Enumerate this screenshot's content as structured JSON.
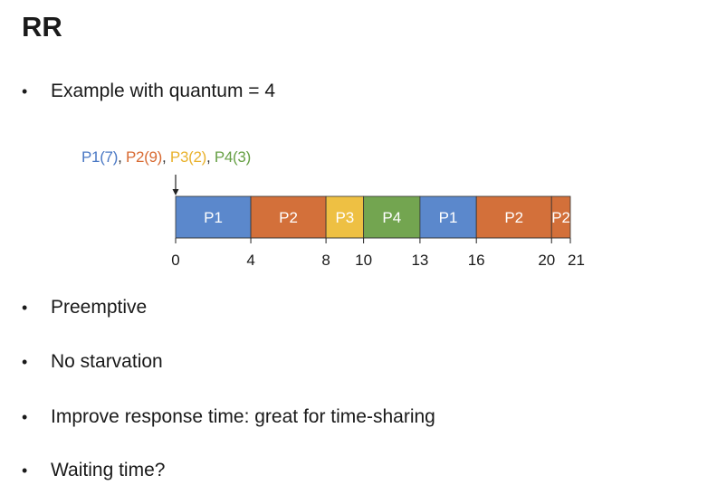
{
  "title": "RR",
  "bullets": {
    "example": "Example with quantum = 4",
    "preemptive": "Preemptive",
    "starvation": "No starvation",
    "response": "Improve response time: great for time-sharing",
    "waiting": "Waiting time?"
  },
  "bullet_char": "•",
  "processes": [
    {
      "label": "P1(7)",
      "color": "#4a78c4"
    },
    {
      "label": "P2(9)",
      "color": "#d86b33"
    },
    {
      "label": "P3(2)",
      "color": "#e9b22d"
    },
    {
      "label": "P4(3)",
      "color": "#67a045"
    }
  ],
  "separator": ",",
  "gantt": {
    "scale_end": 21,
    "segments": [
      {
        "label": "P1",
        "start": 0,
        "end": 4,
        "color": "#5b88cc"
      },
      {
        "label": "P2",
        "start": 4,
        "end": 8,
        "color": "#d3703a"
      },
      {
        "label": "P3",
        "start": 8,
        "end": 10,
        "color": "#eec043"
      },
      {
        "label": "P4",
        "start": 10,
        "end": 13,
        "color": "#73a550"
      },
      {
        "label": "P1",
        "start": 13,
        "end": 16,
        "color": "#5b88cc"
      },
      {
        "label": "P2",
        "start": 16,
        "end": 20,
        "color": "#d3703a"
      },
      {
        "label": "P2",
        "start": 20,
        "end": 21,
        "color": "#d3703a"
      }
    ],
    "ticks": [
      {
        "value": 0,
        "label": "0"
      },
      {
        "value": 4,
        "label": "4"
      },
      {
        "value": 8,
        "label": "8"
      },
      {
        "value": 10,
        "label": "10"
      },
      {
        "value": 13,
        "label": "13"
      },
      {
        "value": 16,
        "label": "16"
      },
      {
        "value": 20,
        "label": "20"
      },
      {
        "value": 21,
        "label": "21"
      }
    ]
  }
}
